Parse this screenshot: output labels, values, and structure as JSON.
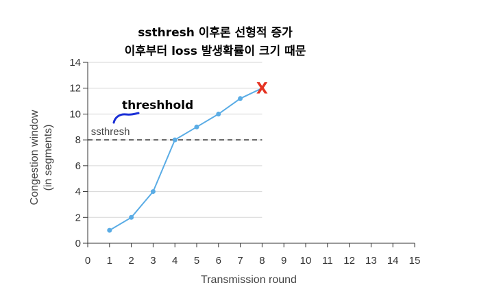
{
  "chart_data": {
    "type": "line",
    "title_lines": [
      "ssthresh 이후론 선형적 증가",
      "이후부터 loss 발생확률이 크기 때문"
    ],
    "xlabel": "Transmission round",
    "ylabel_lines": [
      "Congestion window",
      "(in segments)"
    ],
    "x_ticks": [
      0,
      1,
      2,
      3,
      4,
      5,
      6,
      7,
      8,
      9,
      10,
      11,
      12,
      13,
      14,
      15
    ],
    "y_ticks": [
      0,
      2,
      4,
      6,
      8,
      10,
      12,
      14
    ],
    "xlim": [
      0,
      15
    ],
    "ylim": [
      0,
      14
    ],
    "grid": "horizontal",
    "series": [
      {
        "x": [
          1,
          2,
          3,
          4,
          5,
          6,
          7,
          8
        ],
        "values": [
          1,
          2,
          4,
          8,
          9,
          10,
          11.2,
          12
        ]
      }
    ],
    "reference_line": {
      "label": "ssthresh",
      "y": 8,
      "style": "dashed"
    },
    "annotations": {
      "handwritten_note": "threshhold",
      "loss_marker": "X"
    },
    "colors": {
      "line": "#5aace5",
      "marker": "#5aace5",
      "loss_marker": "#e53322",
      "underline_scribble": "#1a2fd6"
    }
  }
}
